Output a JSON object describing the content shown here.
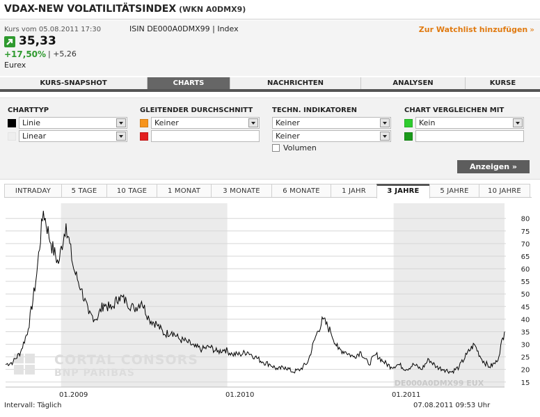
{
  "header": {
    "title": "VDAX-NEW VOLATILITÄTSINDEX",
    "wkn": "(WKN A0DMX9)"
  },
  "quote": {
    "time": "Kurs vom 05.08.2011 17:30",
    "isin": "ISIN DE000A0DMX99 | Index",
    "price": "35,33",
    "change_pct": "+17,50%",
    "separator": "|",
    "change_abs": "+5,26",
    "exchange": "Eurex",
    "watchlist_label": "Zur Watchlist hinzufügen",
    "watchlist_chevron": "»",
    "up_color": "#2f9a2f",
    "accent": "#e07a10"
  },
  "main_tabs": [
    {
      "label": "KURS-SNAPSHOT",
      "active": false
    },
    {
      "label": "CHARTS",
      "active": true
    },
    {
      "label": "NACHRICHTEN",
      "active": false
    },
    {
      "label": "ANALYSEN",
      "active": false
    },
    {
      "label": "KURSE",
      "active": false
    }
  ],
  "settings": {
    "charttyp": {
      "heading": "CHARTTYP",
      "type_value": "Linie",
      "type_color": "#000000",
      "scale_value": "Linear",
      "scale_color": "#eeeeee"
    },
    "gd": {
      "heading": "GLEITENDER DURCHSCHNITT",
      "value1": "Keiner",
      "color1": "#f7941d",
      "value2": "",
      "color2": "#e32020"
    },
    "indikatoren": {
      "heading": "TECHN. INDIKATOREN",
      "value1": "Keiner",
      "value2": "Keiner",
      "volume_label": "Volumen"
    },
    "vergleich": {
      "heading": "CHART VERGLEICHEN MIT",
      "value1": "Kein",
      "color1": "#2ecc2e",
      "value2": "",
      "color2": "#1b9a1b"
    },
    "show_button": "Anzeigen »"
  },
  "range_tabs": [
    {
      "label": "INTRADAY",
      "active": false
    },
    {
      "label": "5 TAGE",
      "active": false
    },
    {
      "label": "10 TAGE",
      "active": false
    },
    {
      "label": "1 MONAT",
      "active": false
    },
    {
      "label": "3 MONATE",
      "active": false
    },
    {
      "label": "6 MONATE",
      "active": false
    },
    {
      "label": "1 JAHR",
      "active": false
    },
    {
      "label": "3 JAHRE",
      "active": true
    },
    {
      "label": "5 JAHRE",
      "active": false
    },
    {
      "label": "10 JAHRE",
      "active": false
    }
  ],
  "chart_data": {
    "type": "line",
    "x_ticks": [
      "01.2009",
      "01.2010",
      "01.2011"
    ],
    "y_ticks": [
      15,
      20,
      25,
      30,
      35,
      40,
      45,
      50,
      55,
      60,
      65,
      70,
      75,
      80
    ],
    "ylim": [
      13,
      86
    ],
    "grid": true,
    "line_color": "#000000",
    "watermark_lines": [
      "CORTAL CONSORS",
      "BNP PARIBAS"
    ],
    "series_label": "DE000A0DMX99 EUX",
    "series": [
      {
        "x": [
          "08.2008",
          "09.2008",
          "09.2008",
          "10.2008",
          "10.2008",
          "10.2008",
          "10.2008",
          "10.2008",
          "11.2008",
          "11.2008",
          "11.2008",
          "11.2008",
          "12.2008",
          "12.2008",
          "12.2008",
          "01.2009",
          "01.2009",
          "02.2009",
          "02.2009",
          "03.2009",
          "03.2009",
          "04.2009",
          "04.2009",
          "05.2009",
          "05.2009",
          "06.2009",
          "07.2009",
          "07.2009",
          "08.2009",
          "09.2009",
          "09.2009",
          "10.2009",
          "11.2009",
          "11.2009",
          "12.2009",
          "01.2010",
          "02.2010",
          "02.2010",
          "03.2010",
          "04.2010",
          "05.2010",
          "05.2010",
          "05.2010",
          "06.2010",
          "06.2010",
          "07.2010",
          "08.2010",
          "08.2010",
          "09.2010",
          "10.2010",
          "10.2010",
          "11.2010",
          "12.2010",
          "01.2011",
          "02.2011",
          "03.2011",
          "03.2011",
          "03.2011",
          "04.2011",
          "05.2011",
          "05.2011",
          "06.2011",
          "06.2011",
          "07.2011",
          "07.2011",
          "08.2011",
          "08.2011"
        ],
        "values": [
          22,
          23,
          27,
          36,
          55,
          83,
          70,
          62,
          78,
          60,
          52,
          42,
          40,
          46,
          44,
          49,
          47,
          44,
          47,
          40,
          38,
          34,
          35,
          32,
          31,
          29,
          28,
          29,
          27,
          28,
          26,
          26,
          27,
          25,
          23,
          22,
          20,
          21,
          19,
          20,
          23,
          33,
          40,
          35,
          28,
          27,
          25,
          27,
          22,
          26,
          23,
          21,
          22,
          20,
          22,
          20,
          24,
          21,
          20,
          19,
          21,
          26,
          30,
          24,
          21,
          23,
          35
        ]
      }
    ]
  },
  "footer": {
    "interval": "Intervall: Täglich",
    "datetime": "07.08.2011     09:53 Uhr"
  }
}
